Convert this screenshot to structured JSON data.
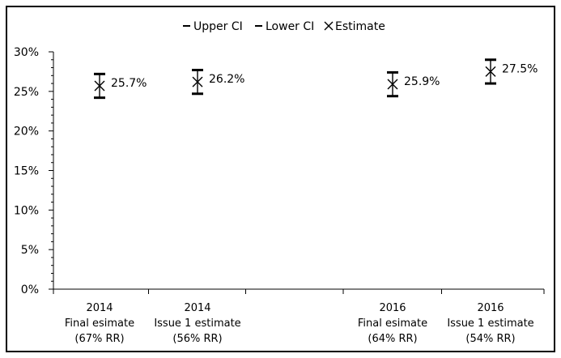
{
  "chart_data": {
    "type": "scatter",
    "legend": {
      "placement": "top",
      "entries": [
        {
          "label": "Upper CI",
          "marker": "dash"
        },
        {
          "label": "Lower CI",
          "marker": "dash"
        },
        {
          "label": "Estimate",
          "marker": "x"
        }
      ]
    },
    "ylim": [
      0,
      30
    ],
    "yticks": [
      "0%",
      "5%",
      "10%",
      "15%",
      "20%",
      "25%",
      "30%"
    ],
    "ytick_values": [
      0,
      5,
      10,
      15,
      20,
      25,
      30
    ],
    "grid": false,
    "categories": [
      {
        "lines": [
          "2014",
          "Final esimate",
          "(67% RR)"
        ]
      },
      {
        "lines": [
          "2014",
          "Issue 1 estimate",
          "(56% RR)"
        ]
      },
      {
        "lines": [
          "",
          "",
          ""
        ]
      },
      {
        "lines": [
          "2016",
          "Final esimate",
          "(64% RR)"
        ]
      },
      {
        "lines": [
          "2016",
          "Issue 1 estimate",
          "(54% RR)"
        ]
      }
    ],
    "points": [
      {
        "category_index": 0,
        "estimate": 25.7,
        "upper": 27.2,
        "lower": 24.2,
        "label": "25.7%"
      },
      {
        "category_index": 1,
        "estimate": 26.2,
        "upper": 27.7,
        "lower": 24.7,
        "label": "26.2%"
      },
      {
        "category_index": 3,
        "estimate": 25.9,
        "upper": 27.4,
        "lower": 24.4,
        "label": "25.9%"
      },
      {
        "category_index": 4,
        "estimate": 27.5,
        "upper": 29.0,
        "lower": 26.0,
        "label": "27.5%"
      }
    ],
    "colors": {
      "series": "#000000",
      "axis": "#000000",
      "frame": "#000000"
    }
  }
}
